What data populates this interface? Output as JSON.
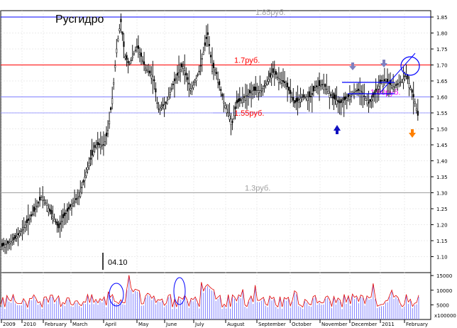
{
  "chart_data": {
    "type": "line",
    "title": "Русгидро",
    "ylim": [
      1.05,
      1.87
    ],
    "yticks": [
      "1.85",
      "1.80",
      "1.75",
      "1.70",
      "1.65",
      "1.60",
      "1.55",
      "1.50",
      "1.45",
      "1.40",
      "1.35",
      "1.30",
      "1.25",
      "1.20",
      "1.15",
      "1.10"
    ],
    "x_labels": [
      "2009",
      "2010",
      "February",
      "March",
      "April",
      "May",
      "June",
      "July",
      "August",
      "September",
      "October",
      "November",
      "December",
      "2011",
      "February"
    ],
    "levels": [
      {
        "label": "1.85руб.",
        "value": 1.85,
        "color": "#0000ff",
        "label_color": "#a0a0a0"
      },
      {
        "label": "1.7руб.",
        "value": 1.7,
        "color": "#ff0000",
        "label_color": "#ff0000"
      },
      {
        "label": "1.60руб.",
        "value": 1.6,
        "color": "#8080ff",
        "label_color": "#ff00ff"
      },
      {
        "label": "1.55руб.",
        "value": 1.55,
        "color": "#8080ff",
        "label_color": "#ff0000"
      },
      {
        "label": "1.3руб.",
        "value": 1.3,
        "color": "#a0a0a0",
        "label_color": "#a0a0a0"
      }
    ],
    "price_path": [
      [
        0,
        1.13
      ],
      [
        3,
        1.15
      ],
      [
        5,
        1.18
      ],
      [
        8,
        1.24
      ],
      [
        10,
        1.29
      ],
      [
        12,
        1.24
      ],
      [
        14,
        1.19
      ],
      [
        15,
        1.22
      ],
      [
        17,
        1.26
      ],
      [
        19,
        1.29
      ],
      [
        21,
        1.38
      ],
      [
        23,
        1.45
      ],
      [
        25,
        1.45
      ],
      [
        26,
        1.5
      ],
      [
        27,
        1.6
      ],
      [
        28,
        1.75
      ],
      [
        29,
        1.84
      ],
      [
        30,
        1.73
      ],
      [
        31,
        1.7
      ],
      [
        33,
        1.76
      ],
      [
        35,
        1.69
      ],
      [
        37,
        1.66
      ],
      [
        38,
        1.56
      ],
      [
        40,
        1.58
      ],
      [
        42,
        1.65
      ],
      [
        44,
        1.7
      ],
      [
        46,
        1.62
      ],
      [
        48,
        1.68
      ],
      [
        50,
        1.8
      ],
      [
        51,
        1.7
      ],
      [
        52,
        1.68
      ],
      [
        53,
        1.63
      ],
      [
        54,
        1.58
      ],
      [
        56,
        1.52
      ],
      [
        57,
        1.58
      ],
      [
        59,
        1.6
      ],
      [
        61,
        1.62
      ],
      [
        63,
        1.62
      ],
      [
        64,
        1.64
      ],
      [
        66,
        1.68
      ],
      [
        67,
        1.66
      ],
      [
        69,
        1.64
      ],
      [
        71,
        1.58
      ],
      [
        73,
        1.6
      ],
      [
        75,
        1.6
      ],
      [
        76,
        1.63
      ],
      [
        78,
        1.64
      ],
      [
        80,
        1.6
      ],
      [
        82,
        1.58
      ],
      [
        84,
        1.6
      ],
      [
        86,
        1.62
      ],
      [
        87,
        1.62
      ],
      [
        89,
        1.58
      ],
      [
        90,
        1.6
      ],
      [
        92,
        1.65
      ],
      [
        93,
        1.65
      ],
      [
        95,
        1.63
      ],
      [
        97,
        1.65
      ],
      [
        98,
        1.67
      ],
      [
        99,
        1.63
      ],
      [
        100,
        1.59
      ],
      [
        101,
        1.53
      ]
    ],
    "volume_series": {
      "name": "",
      "ylim": [
        0,
        16000
      ],
      "yticks": [
        "15000",
        "10000",
        "5000"
      ],
      "scale_label": "x100000"
    },
    "annotations": [
      {
        "text": "04.10"
      }
    ]
  }
}
